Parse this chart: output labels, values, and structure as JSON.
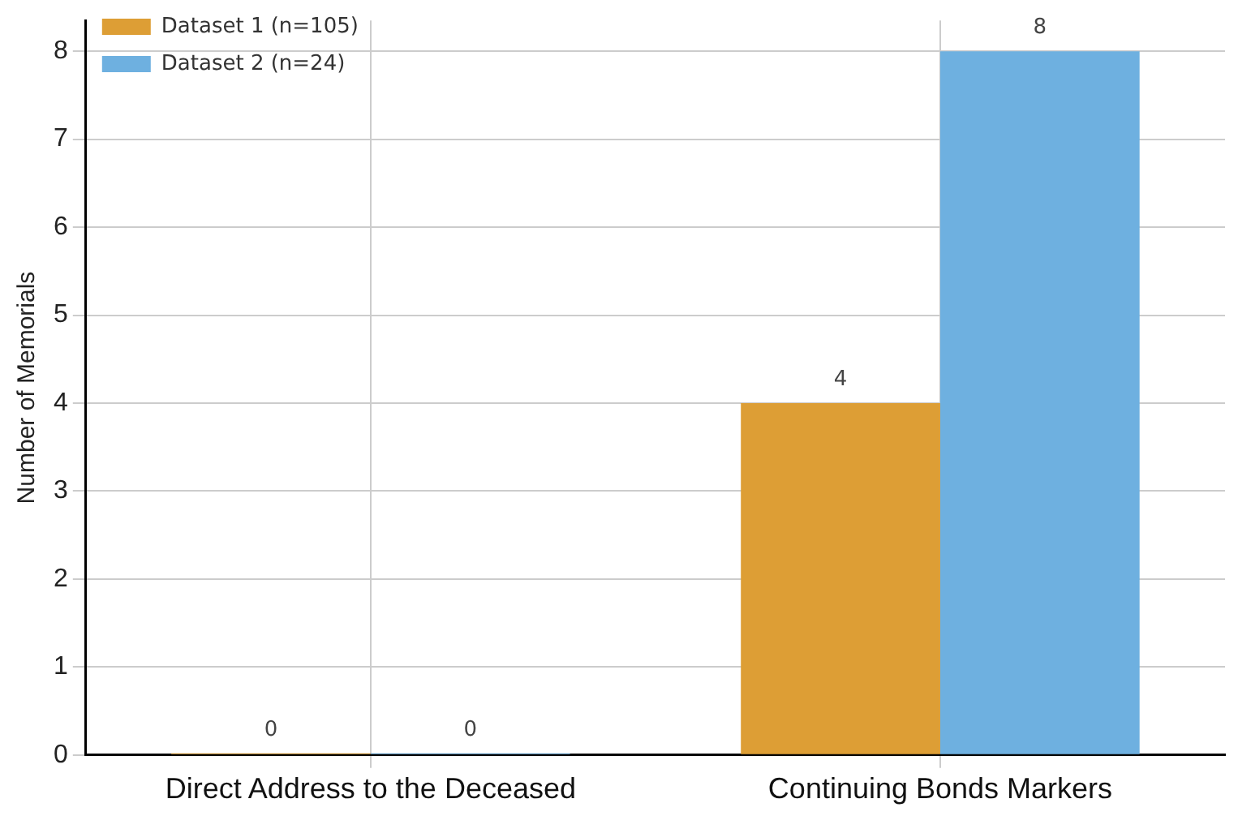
{
  "chart_data": {
    "type": "bar",
    "ylabel": "Number of Memorials",
    "categories": [
      "Direct Address to the Deceased",
      "Continuing Bonds Markers"
    ],
    "series": [
      {
        "name": "Dataset 1 (n=105)",
        "color": "#dd9e35",
        "values": [
          0,
          4
        ]
      },
      {
        "name": "Dataset 2 (n=24)",
        "color": "#6eb0e0",
        "values": [
          0,
          8
        ]
      }
    ],
    "ylim": [
      0,
      8.35
    ],
    "yticks": [
      0,
      1,
      2,
      3,
      4,
      5,
      6,
      7,
      8
    ],
    "grid": true,
    "legend": "top left",
    "data_labels": true
  }
}
